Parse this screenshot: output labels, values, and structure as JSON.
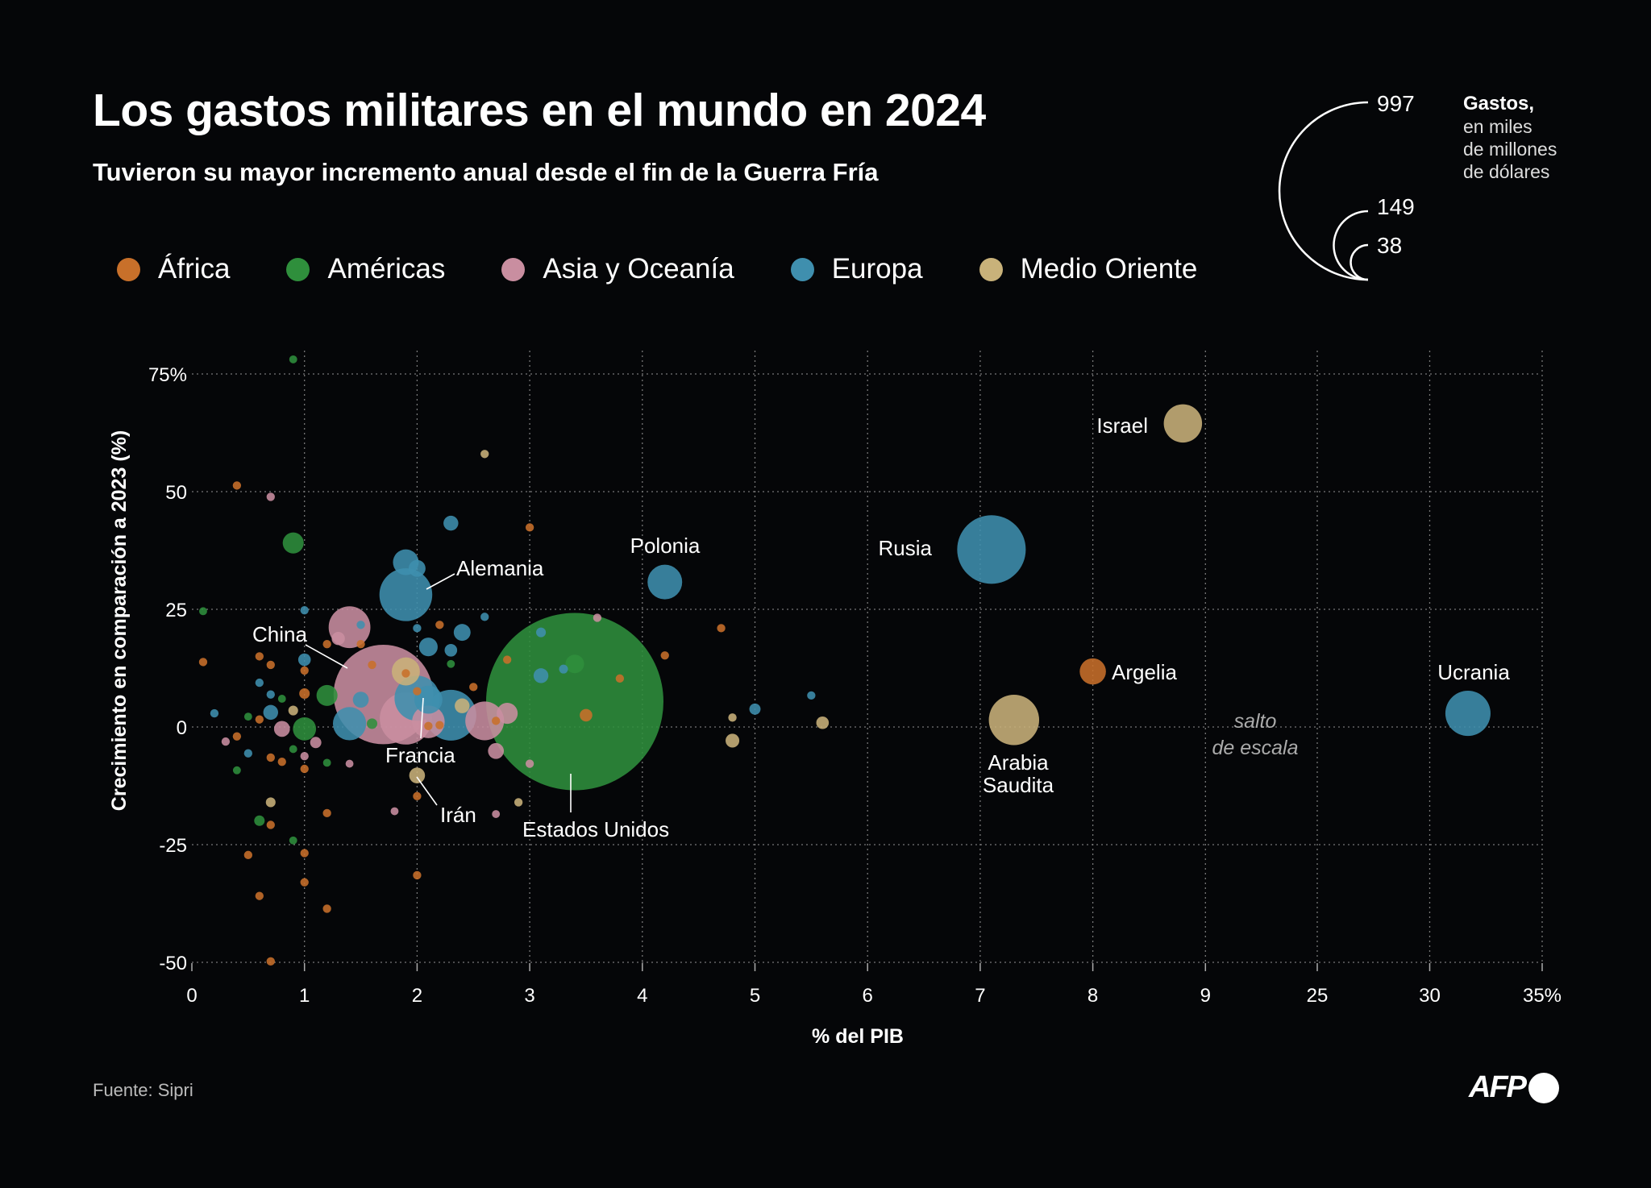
{
  "title": "Los gastos militares en el mundo en 2024",
  "subtitle": "Tuvieron su mayor incremento anual desde el fin de la Guerra Fría",
  "source": "Fuente: Sipri",
  "logo": "AFP",
  "size_legend": {
    "title": "Gastos,",
    "lines": [
      "en miles",
      "de millones",
      "de dólares"
    ],
    "values": [
      "997",
      "149",
      "38"
    ]
  },
  "chart_data": {
    "type": "scatter",
    "title": "Los gastos militares en el mundo en 2024",
    "xlabel": "% del PIB",
    "ylabel": "Crecimiento en comparación a 2023 (%)",
    "x_ticks": [
      "0",
      "1",
      "2",
      "3",
      "4",
      "5",
      "6",
      "7",
      "8",
      "9",
      "25",
      "30",
      "35%"
    ],
    "x_tick_values": [
      0,
      1,
      2,
      3,
      4,
      5,
      6,
      7,
      8,
      9,
      25,
      30,
      35
    ],
    "y_ticks": [
      "75%",
      "50",
      "25",
      "0",
      "-25",
      "-50"
    ],
    "y_tick_values": [
      75,
      50,
      25,
      0,
      -25,
      -50
    ],
    "xlim": [
      0,
      35
    ],
    "ylim": [
      -50,
      80
    ],
    "x_scale_break": [
      9,
      25
    ],
    "scale_break_note": [
      "salto",
      "de escala"
    ],
    "grid": true,
    "legend_position": "top",
    "size_encoding": "Gastos, en miles de millones de dólares",
    "regions": [
      {
        "key": "af",
        "name": "África",
        "color": "#c8702a"
      },
      {
        "key": "am",
        "name": "Américas",
        "color": "#2f8f3c"
      },
      {
        "key": "as",
        "name": "Asia y Oceanía",
        "color": "#c98ea0"
      },
      {
        "key": "eu",
        "name": "Europa",
        "color": "#3f8fae"
      },
      {
        "key": "me",
        "name": "Medio Oriente",
        "color": "#c9b27a"
      }
    ],
    "points": [
      {
        "r": "am",
        "x": 3.4,
        "y": 5.4,
        "s": 997,
        "label": "Estados Unidos"
      },
      {
        "r": "as",
        "x": 1.7,
        "y": 6.9,
        "s": 314,
        "label": "China"
      },
      {
        "r": "eu",
        "x": 7.1,
        "y": 37.7,
        "s": 149,
        "label": "Rusia"
      },
      {
        "r": "eu",
        "x": 1.9,
        "y": 28.1,
        "s": 88.5,
        "label": "Alemania"
      },
      {
        "r": "as",
        "x": 1.9,
        "y": 1.8,
        "s": 86
      },
      {
        "r": "eu",
        "x": 2.3,
        "y": 2.5,
        "s": 81.8
      },
      {
        "r": "me",
        "x": 7.3,
        "y": 1.5,
        "s": 80.3,
        "label": "Arabia Saudita"
      },
      {
        "r": "eu",
        "x": 31.7,
        "y": 2.9,
        "s": 64.7,
        "label": "Ucrania"
      },
      {
        "r": "eu",
        "x": 2.0,
        "y": 6.1,
        "s": 64.7,
        "label": "Francia"
      },
      {
        "r": "as",
        "x": 1.4,
        "y": 21.2,
        "s": 55.3
      },
      {
        "r": "as",
        "x": 2.6,
        "y": 1.3,
        "s": 47.6
      },
      {
        "r": "me",
        "x": 8.8,
        "y": 64.5,
        "s": 46.5,
        "label": "Israel"
      },
      {
        "r": "eu",
        "x": 4.2,
        "y": 30.8,
        "s": 38,
        "label": "Polonia"
      },
      {
        "r": "eu",
        "x": 1.4,
        "y": 0.7,
        "s": 35
      },
      {
        "r": "as",
        "x": 2.1,
        "y": 1.1,
        "s": 33.8
      },
      {
        "r": "eu",
        "x": 1.9,
        "y": 35.0,
        "s": 21
      },
      {
        "r": "eu",
        "x": 2.1,
        "y": 5.8,
        "s": 25
      },
      {
        "r": "me",
        "x": 1.9,
        "y": 11.8,
        "s": 25
      },
      {
        "r": "af",
        "x": 8.0,
        "y": 11.8,
        "s": 21.8,
        "label": "Argelia"
      },
      {
        "r": "am",
        "x": 1.0,
        "y": -0.4,
        "s": 17
      },
      {
        "r": "am",
        "x": 0.9,
        "y": 39.1,
        "s": 14
      },
      {
        "r": "am",
        "x": 1.2,
        "y": 6.7,
        "s": 14
      },
      {
        "r": "as",
        "x": 2.8,
        "y": 2.9,
        "s": 14
      },
      {
        "r": "am",
        "x": 3.4,
        "y": 13.4,
        "s": 11
      },
      {
        "r": "eu",
        "x": 2.1,
        "y": 17.0,
        "s": 11
      },
      {
        "r": "eu",
        "x": 2.0,
        "y": 33.7,
        "s": 9
      },
      {
        "r": "eu",
        "x": 2.4,
        "y": 20.1,
        "s": 9
      },
      {
        "r": "me",
        "x": 2.0,
        "y": -10.3,
        "s": 7.9,
        "label": "Irán"
      },
      {
        "r": "as",
        "x": 0.8,
        "y": -0.4,
        "s": 8
      },
      {
        "r": "as",
        "x": 2.7,
        "y": -5.1,
        "s": 8
      },
      {
        "r": "eu",
        "x": 1.5,
        "y": 5.8,
        "s": 8
      },
      {
        "r": "eu",
        "x": 2.3,
        "y": 43.3,
        "s": 7
      },
      {
        "r": "eu",
        "x": 3.1,
        "y": 10.9,
        "s": 7
      },
      {
        "r": "eu",
        "x": 0.7,
        "y": 3.1,
        "s": 7
      },
      {
        "r": "me",
        "x": 2.4,
        "y": 4.5,
        "s": 7
      },
      {
        "r": "me",
        "x": 4.8,
        "y": -2.9,
        "s": 6
      },
      {
        "r": "as",
        "x": 1.3,
        "y": 18.8,
        "s": 5.5
      },
      {
        "r": "eu",
        "x": 2.3,
        "y": 16.3,
        "s": 5
      },
      {
        "r": "eu",
        "x": 1.0,
        "y": 14.3,
        "s": 5
      },
      {
        "r": "af",
        "x": 3.5,
        "y": 2.5,
        "s": 5
      },
      {
        "r": "eu",
        "x": 5.0,
        "y": 3.8,
        "s": 4
      },
      {
        "r": "me",
        "x": 5.6,
        "y": 0.9,
        "s": 5
      },
      {
        "r": "as",
        "x": 1.1,
        "y": -3.3,
        "s": 4
      },
      {
        "r": "am",
        "x": 0.6,
        "y": -19.9,
        "s": 3.5
      },
      {
        "r": "am",
        "x": 1.6,
        "y": 0.7,
        "s": 3.5
      },
      {
        "r": "af",
        "x": 1.0,
        "y": 7.1,
        "s": 3.5
      },
      {
        "r": "me",
        "x": 0.7,
        "y": -16.0,
        "s": 3
      },
      {
        "r": "me",
        "x": 0.9,
        "y": 3.5,
        "s": 3
      },
      {
        "r": "me",
        "x": 2.6,
        "y": 58.0,
        "s": 2.2
      },
      {
        "r": "me",
        "x": 4.8,
        "y": 2.0,
        "s": 2.2
      },
      {
        "r": "me",
        "x": 2.9,
        "y": -16.0,
        "s": 2.2
      },
      {
        "r": "eu",
        "x": 3.3,
        "y": 12.3,
        "s": 2.5
      },
      {
        "r": "eu",
        "x": 3.1,
        "y": 20.1,
        "s": 3
      },
      {
        "r": "eu",
        "x": 2.6,
        "y": 23.4,
        "s": 2.2
      },
      {
        "r": "eu",
        "x": 1.0,
        "y": 24.8,
        "s": 2.2
      },
      {
        "r": "eu",
        "x": 0.6,
        "y": 9.4,
        "s": 2.2
      },
      {
        "r": "eu",
        "x": 0.7,
        "y": 6.9,
        "s": 2.2
      },
      {
        "r": "eu",
        "x": 0.2,
        "y": 2.9,
        "s": 2.2
      },
      {
        "r": "eu",
        "x": 0.5,
        "y": -5.6,
        "s": 2.2
      },
      {
        "r": "eu",
        "x": 5.5,
        "y": 6.7,
        "s": 2.2
      },
      {
        "r": "eu",
        "x": 1.5,
        "y": 21.7,
        "s": 2.2
      },
      {
        "r": "eu",
        "x": 2.0,
        "y": 21.0,
        "s": 2.2
      },
      {
        "r": "am",
        "x": 0.9,
        "y": 78.1,
        "s": 2
      },
      {
        "r": "am",
        "x": 0.1,
        "y": 24.6,
        "s": 2
      },
      {
        "r": "am",
        "x": 0.8,
        "y": 6.0,
        "s": 2
      },
      {
        "r": "am",
        "x": 0.5,
        "y": 2.2,
        "s": 2
      },
      {
        "r": "am",
        "x": 0.4,
        "y": -9.2,
        "s": 2
      },
      {
        "r": "am",
        "x": 0.9,
        "y": -24.1,
        "s": 2
      },
      {
        "r": "am",
        "x": 0.9,
        "y": -4.7,
        "s": 2
      },
      {
        "r": "am",
        "x": 1.2,
        "y": -7.6,
        "s": 2
      },
      {
        "r": "am",
        "x": 2.3,
        "y": 13.4,
        "s": 2
      },
      {
        "r": "as",
        "x": 0.7,
        "y": 48.9,
        "s": 2.2
      },
      {
        "r": "as",
        "x": 0.3,
        "y": -3.1,
        "s": 2.2
      },
      {
        "r": "as",
        "x": 1.0,
        "y": -6.2,
        "s": 2.2
      },
      {
        "r": "as",
        "x": 1.4,
        "y": -7.8,
        "s": 2
      },
      {
        "r": "as",
        "x": 1.8,
        "y": -17.9,
        "s": 2
      },
      {
        "r": "as",
        "x": 2.7,
        "y": -18.5,
        "s": 2
      },
      {
        "r": "as",
        "x": 3.0,
        "y": -7.8,
        "s": 2.2
      },
      {
        "r": "as",
        "x": 3.6,
        "y": 23.2,
        "s": 2.2
      },
      {
        "r": "af",
        "x": 0.4,
        "y": 51.3,
        "s": 2.2
      },
      {
        "r": "af",
        "x": 3.0,
        "y": 42.4,
        "s": 2.2
      },
      {
        "r": "af",
        "x": 0.1,
        "y": 13.8,
        "s": 2.2
      },
      {
        "r": "af",
        "x": 0.6,
        "y": 15.0,
        "s": 2.2
      },
      {
        "r": "af",
        "x": 0.7,
        "y": 13.2,
        "s": 2.2
      },
      {
        "r": "af",
        "x": 1.0,
        "y": 12.0,
        "s": 2.2
      },
      {
        "r": "af",
        "x": 1.2,
        "y": 17.6,
        "s": 2.2
      },
      {
        "r": "af",
        "x": 1.5,
        "y": 17.6,
        "s": 2.2
      },
      {
        "r": "af",
        "x": 1.6,
        "y": 13.2,
        "s": 2.2
      },
      {
        "r": "af",
        "x": 2.2,
        "y": 21.7,
        "s": 2.2
      },
      {
        "r": "af",
        "x": 2.8,
        "y": 14.3,
        "s": 2.2
      },
      {
        "r": "af",
        "x": 4.7,
        "y": 21.0,
        "s": 2.2
      },
      {
        "r": "af",
        "x": 4.2,
        "y": 15.2,
        "s": 2.2
      },
      {
        "r": "af",
        "x": 3.8,
        "y": 10.3,
        "s": 2.2
      },
      {
        "r": "af",
        "x": 0.6,
        "y": 1.6,
        "s": 2.2
      },
      {
        "r": "af",
        "x": 0.4,
        "y": -2.0,
        "s": 2.2
      },
      {
        "r": "af",
        "x": 0.7,
        "y": -6.5,
        "s": 2.2
      },
      {
        "r": "af",
        "x": 0.8,
        "y": -7.4,
        "s": 2.2
      },
      {
        "r": "af",
        "x": 1.0,
        "y": -8.9,
        "s": 2.2
      },
      {
        "r": "af",
        "x": 0.7,
        "y": -20.8,
        "s": 2.2
      },
      {
        "r": "af",
        "x": 0.5,
        "y": -27.2,
        "s": 2.2
      },
      {
        "r": "af",
        "x": 1.0,
        "y": -26.8,
        "s": 2.2
      },
      {
        "r": "af",
        "x": 1.0,
        "y": -33.0,
        "s": 2.2
      },
      {
        "r": "af",
        "x": 0.6,
        "y": -35.9,
        "s": 2.2
      },
      {
        "r": "af",
        "x": 1.2,
        "y": -38.6,
        "s": 2.2
      },
      {
        "r": "af",
        "x": 0.7,
        "y": -49.8,
        "s": 2.2
      },
      {
        "r": "af",
        "x": 2.0,
        "y": -14.7,
        "s": 2.2
      },
      {
        "r": "af",
        "x": 2.0,
        "y": -31.5,
        "s": 2.2
      },
      {
        "r": "af",
        "x": 1.2,
        "y": -18.3,
        "s": 2.2
      },
      {
        "r": "af",
        "x": 2.1,
        "y": 0.2,
        "s": 2.2
      },
      {
        "r": "af",
        "x": 2.5,
        "y": 8.5,
        "s": 2.2
      },
      {
        "r": "af",
        "x": 2.7,
        "y": 1.3,
        "s": 2.2
      },
      {
        "r": "af",
        "x": 2.2,
        "y": 0.4,
        "s": 2.2
      },
      {
        "r": "af",
        "x": 1.9,
        "y": 11.4,
        "s": 2.2
      },
      {
        "r": "af",
        "x": 2.0,
        "y": 7.6,
        "s": 2.2
      }
    ]
  }
}
